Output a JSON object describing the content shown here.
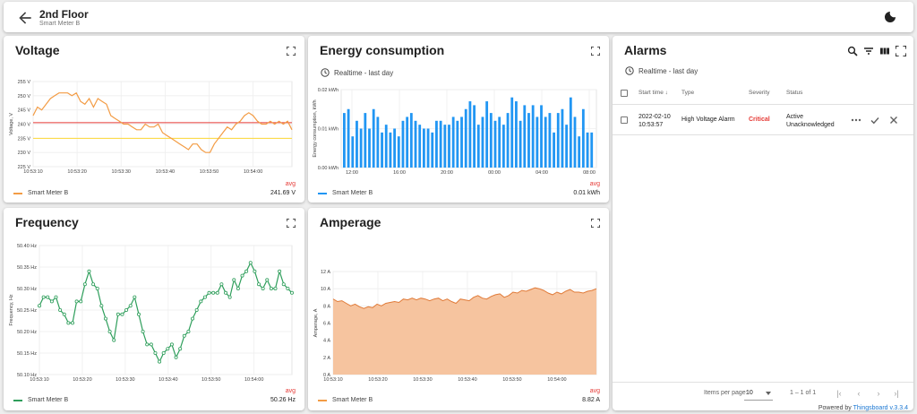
{
  "header": {
    "title": "2nd Floor",
    "subtitle": "Smart Meter B",
    "back_icon": "arrow-back-icon",
    "theme_icon": "moon-icon"
  },
  "widgets": {
    "voltage": {
      "title": "Voltage",
      "legend": "Smart Meter B",
      "avg_label": "avg",
      "avg_value": "241.69 V",
      "color": "#f39c45"
    },
    "energy": {
      "title": "Energy consumption",
      "realtime": "Realtime - last day",
      "legend": "Smart Meter B",
      "avg_label": "avg",
      "avg_value": "0.01 kWh",
      "color": "#2196f3"
    },
    "frequency": {
      "title": "Frequency",
      "legend": "Smart Meter B",
      "avg_label": "avg",
      "avg_value": "50.26 Hz",
      "color": "#2e9e5b"
    },
    "amperage": {
      "title": "Amperage",
      "legend": "Smart Meter B",
      "avg_label": "avg",
      "avg_value": "8.82 A",
      "color": "#f39c45"
    }
  },
  "alarms": {
    "title": "Alarms",
    "realtime": "Realtime - last day",
    "columns": {
      "start_time": "Start time",
      "type": "Type",
      "severity": "Severity",
      "status": "Status"
    },
    "rows": [
      {
        "date": "2022-02-10",
        "time": "10:53:57",
        "type": "High Voltage Alarm",
        "severity": "Critical",
        "status_line1": "Active",
        "status_line2": "Unacknowledged",
        "severity_color": "#e53935"
      }
    ],
    "pager": {
      "items_per_page_label": "Items per page:",
      "items_per_page": "10",
      "range": "1 – 1 of 1"
    },
    "powered_by": "Powered by",
    "powered_link": "Thingsboard v.3.3.4"
  },
  "chart_data": [
    {
      "type": "line",
      "title": "Voltage",
      "ylabel": "Voltage, V",
      "ylim": [
        225,
        255
      ],
      "yticks": [
        "225 V",
        "230 V",
        "235 V",
        "240 V",
        "245 V",
        "250 V",
        "255 V"
      ],
      "xticks": [
        "10:53:10",
        "10:53:20",
        "10:53:30",
        "10:53:40",
        "10:53:50",
        "10:54:00"
      ],
      "x_range_s": [
        0,
        60
      ],
      "thresholds": [
        {
          "value": 240.5,
          "color": "#e53935"
        },
        {
          "value": 235,
          "color": "#fdd835"
        }
      ],
      "series": [
        {
          "name": "Smart Meter B",
          "values": [
            243,
            246,
            245,
            247,
            249,
            250,
            251,
            251,
            251,
            250,
            251,
            248,
            247,
            249,
            246,
            249,
            248,
            247,
            243,
            242,
            241,
            240,
            240,
            239,
            238,
            238,
            240,
            239,
            239,
            240,
            237,
            236,
            235,
            234,
            233,
            232,
            231,
            233,
            233,
            231,
            230,
            230,
            233,
            235,
            237,
            239,
            238,
            240,
            241,
            243,
            244,
            243,
            241,
            240,
            240,
            241,
            240,
            241,
            240,
            241,
            238
          ]
        }
      ]
    },
    {
      "type": "bar",
      "title": "Energy consumption",
      "ylabel": "Energy consumption, kWh",
      "ylim": [
        0,
        0.02
      ],
      "yticks": [
        "0.00 kWh",
        "0.01 kWh",
        "0.02 kWh"
      ],
      "xticks": [
        "12:00",
        "16:00",
        "20:00",
        "00:00",
        "04:00",
        "08:00"
      ],
      "series": [
        {
          "name": "Smart Meter B",
          "values": [
            0.014,
            0.015,
            0.008,
            0.012,
            0.01,
            0.014,
            0.01,
            0.015,
            0.013,
            0.009,
            0.011,
            0.009,
            0.01,
            0.008,
            0.012,
            0.013,
            0.014,
            0.012,
            0.011,
            0.01,
            0.01,
            0.009,
            0.012,
            0.012,
            0.011,
            0.011,
            0.013,
            0.012,
            0.013,
            0.015,
            0.017,
            0.016,
            0.011,
            0.013,
            0.017,
            0.014,
            0.012,
            0.013,
            0.011,
            0.014,
            0.018,
            0.017,
            0.012,
            0.016,
            0.014,
            0.016,
            0.013,
            0.016,
            0.013,
            0.014,
            0.009,
            0.014,
            0.015,
            0.011,
            0.018,
            0.013,
            0.008,
            0.015,
            0.009,
            0.009
          ]
        }
      ]
    },
    {
      "type": "line",
      "title": "Frequency",
      "ylabel": "Frequency, Hz",
      "ylim": [
        50.1,
        50.4
      ],
      "yticks": [
        "50.10 Hz",
        "50.15 Hz",
        "50.20 Hz",
        "50.25 Hz",
        "50.30 Hz",
        "50.35 Hz",
        "50.40 Hz"
      ],
      "xticks": [
        "10:53:10",
        "10:53:20",
        "10:53:30",
        "10:53:40",
        "10:53:50",
        "10:54:00"
      ],
      "markers": true,
      "series": [
        {
          "name": "Smart Meter B",
          "values": [
            50.26,
            50.28,
            50.28,
            50.27,
            50.28,
            50.25,
            50.24,
            50.22,
            50.22,
            50.27,
            50.27,
            50.31,
            50.34,
            50.31,
            50.3,
            50.26,
            50.23,
            50.2,
            50.18,
            50.24,
            50.24,
            50.25,
            50.26,
            50.28,
            50.24,
            50.2,
            50.17,
            50.17,
            50.15,
            50.13,
            50.15,
            50.16,
            50.17,
            50.14,
            50.16,
            50.19,
            50.2,
            50.23,
            50.25,
            50.27,
            50.28,
            50.29,
            50.29,
            50.29,
            50.31,
            50.29,
            50.28,
            50.32,
            50.3,
            50.33,
            50.34,
            50.36,
            50.34,
            50.31,
            50.3,
            50.32,
            50.3,
            50.3,
            50.34,
            50.31,
            50.3,
            50.29
          ]
        }
      ]
    },
    {
      "type": "area",
      "title": "Amperage",
      "ylabel": "Amperage, A",
      "ylim": [
        0,
        12
      ],
      "yticks": [
        "0 A",
        "2 A",
        "4 A",
        "6 A",
        "8 A",
        "10 A",
        "12 A"
      ],
      "xticks": [
        "10:53:10",
        "10:53:20",
        "10:53:30",
        "10:53:40",
        "10:53:50",
        "10:54:00"
      ],
      "series": [
        {
          "name": "Smart Meter B",
          "values": [
            8.8,
            8.5,
            8.6,
            8.3,
            8.0,
            8.2,
            7.9,
            7.7,
            7.9,
            7.8,
            8.2,
            8.0,
            8.3,
            8.4,
            8.5,
            8.4,
            8.8,
            8.7,
            8.9,
            8.7,
            8.9,
            8.8,
            8.6,
            8.8,
            8.9,
            8.6,
            8.8,
            8.5,
            8.3,
            8.8,
            8.7,
            8.6,
            9.0,
            9.2,
            8.9,
            8.8,
            9.1,
            9.3,
            9.4,
            9.0,
            9.2,
            9.6,
            9.5,
            9.8,
            9.7,
            9.9,
            10.1,
            10.0,
            9.8,
            9.5,
            9.3,
            9.6,
            9.4,
            9.7,
            9.9,
            9.6,
            9.6,
            9.5,
            9.7,
            9.8,
            10.0
          ]
        }
      ]
    }
  ]
}
